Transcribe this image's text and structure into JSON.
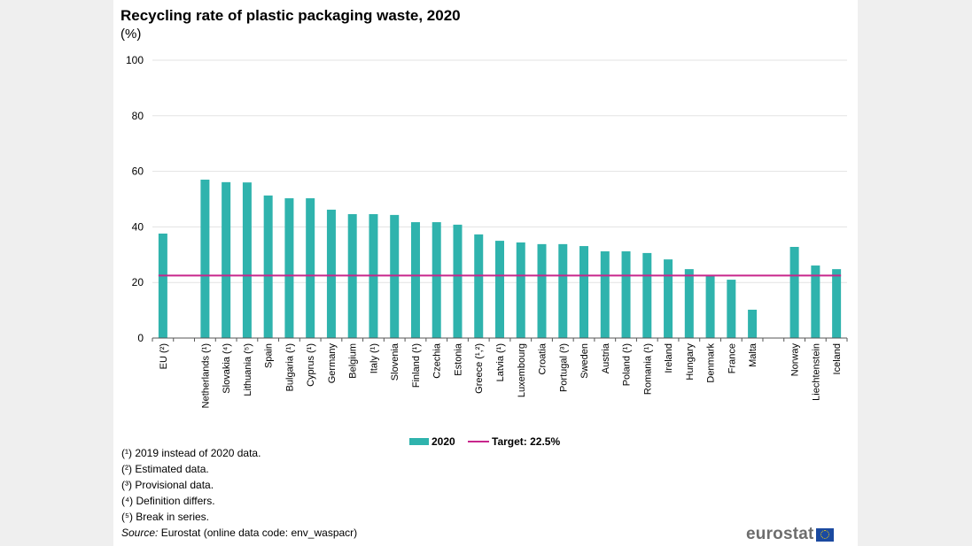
{
  "chart_data": {
    "type": "bar",
    "title": "Recycling rate of plastic packaging waste, 2020",
    "ylabel": "(%)",
    "xlabel": "",
    "ylim": [
      0,
      100
    ],
    "yticks": [
      0,
      20,
      40,
      60,
      80,
      100
    ],
    "grid": true,
    "categories": [
      "EU (²)",
      "",
      "Netherlands (¹)",
      "Slovakia (⁴)",
      "Lithuania (⁵)",
      "Spain",
      "Bulgaria (¹)",
      "Cyprus (¹)",
      "Germany",
      "Belgium",
      "Italy (¹)",
      "Slovenia",
      "Finland (¹)",
      "Czechia",
      "Estonia",
      "Greece (¹,²)",
      "Latvia (¹)",
      "Luxembourg",
      "Croatia",
      "Portugal (³)",
      "Sweden",
      "Austria",
      "Poland (¹)",
      "Romania (¹)",
      "Ireland",
      "Hungary",
      "Denmark",
      "France",
      "Malta",
      "",
      "Norway",
      "Liechtenstein",
      "Iceland"
    ],
    "series": [
      {
        "name": "2020",
        "color": "#2fb3ad",
        "values": [
          37.6,
          null,
          57.0,
          56.1,
          56.0,
          51.3,
          50.3,
          50.3,
          46.2,
          44.6,
          44.6,
          44.3,
          41.7,
          41.7,
          40.8,
          37.3,
          35.0,
          34.4,
          33.8,
          33.8,
          33.1,
          31.2,
          31.2,
          30.6,
          28.3,
          24.8,
          22.6,
          21.0,
          10.2,
          null,
          32.8,
          26.1,
          24.8
        ]
      }
    ],
    "target": {
      "name": "Target: 22.5%",
      "value": 22.5,
      "color": "#c8268c"
    },
    "legend": {
      "position": "bottom-center",
      "entries": [
        "2020",
        "Target: 22.5%"
      ]
    }
  },
  "footnotes": [
    "(¹) 2019 instead of 2020 data.",
    "(²) Estimated data.",
    "(³) Provisional data.",
    "(⁴) Definition differs.",
    "(⁵) Break in series."
  ],
  "source": {
    "label": "Source:",
    "text": " Eurostat (online data code: env_waspacr)"
  },
  "logo": "eurostat"
}
